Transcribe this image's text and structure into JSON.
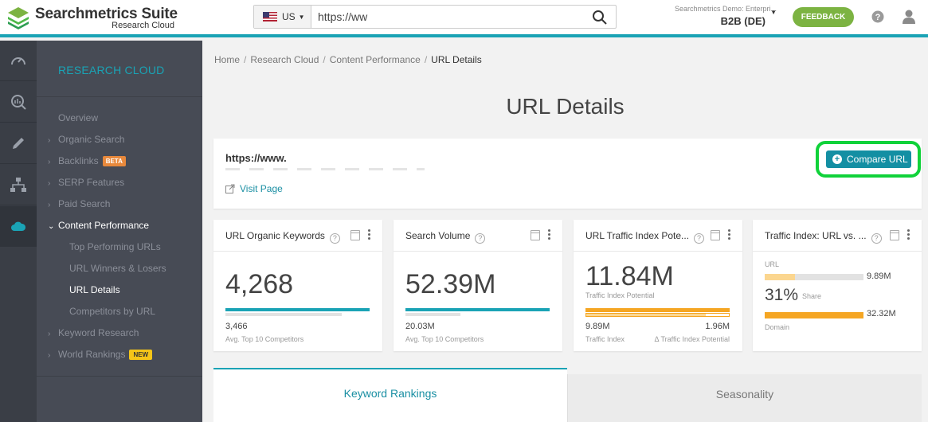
{
  "header": {
    "logo_title": "Searchmetrics Suite",
    "logo_subtitle": "Research Cloud",
    "country": "US",
    "url_value": "https://ww",
    "account_line1": "Searchmetrics Demo: Enterpri...",
    "account_line2": "B2B (DE)",
    "feedback_label": "FEEDBACK",
    "accent_color": "#1aa3b5"
  },
  "rail": {
    "icons": [
      "speedometer-icon",
      "analytics-icon",
      "pencil-icon",
      "sitemap-icon",
      "cloud-icon"
    ],
    "active": "cloud-icon"
  },
  "sidebar": {
    "title": "RESEARCH CLOUD",
    "items": [
      {
        "label": "Overview"
      },
      {
        "label": "Organic Search"
      },
      {
        "label": "Backlinks",
        "badge": "BETA"
      },
      {
        "label": "SERP Features"
      },
      {
        "label": "Paid Search"
      },
      {
        "label": "Content Performance"
      },
      {
        "label": "Top Performing URLs"
      },
      {
        "label": "URL Winners & Losers"
      },
      {
        "label": "URL Details"
      },
      {
        "label": "Competitors by URL"
      },
      {
        "label": "Keyword Research"
      },
      {
        "label": "World Rankings",
        "badge": "NEW"
      }
    ]
  },
  "breadcrumb": {
    "items": [
      "Home",
      "Research Cloud",
      "Content Performance",
      "URL Details"
    ],
    "separator": "/"
  },
  "page_title": "URL Details",
  "url_card": {
    "url": "https://www.",
    "visit_label": "Visit Page",
    "compare_label": "Compare URL"
  },
  "metrics": {
    "keywords": {
      "title": "URL Organic Keywords",
      "value": "4,268",
      "sub_value": "3,466",
      "sub_label": "Avg. Top 10 Competitors",
      "url_bar_fraction": 1.0,
      "competitor_bar_fraction": 0.81
    },
    "volume": {
      "title": "Search Volume",
      "value": "52.39M",
      "sub_value": "20.03M",
      "sub_label": "Avg. Top 10 Competitors",
      "url_bar_fraction": 1.0,
      "competitor_bar_fraction": 0.38
    },
    "traffic_potential": {
      "title": "URL Traffic Index Pote...",
      "value": "11.84M",
      "value_label": "Traffic Index Potential",
      "left_value": "9.89M",
      "left_label": "Traffic Index",
      "right_value": "1.96M",
      "right_label": "Δ Traffic Index Potential",
      "traffic_index_fraction": 0.835
    },
    "traffic_vs": {
      "title": "Traffic Index: URL vs. ...",
      "url_label": "URL",
      "url_value": "9.89M",
      "url_fraction": 0.31,
      "share_pct": "31%",
      "share_label": "Share",
      "domain_value": "32.32M",
      "domain_label": "Domain"
    }
  },
  "tabs": {
    "active": "Keyword Rankings",
    "inactive": "Seasonality"
  }
}
